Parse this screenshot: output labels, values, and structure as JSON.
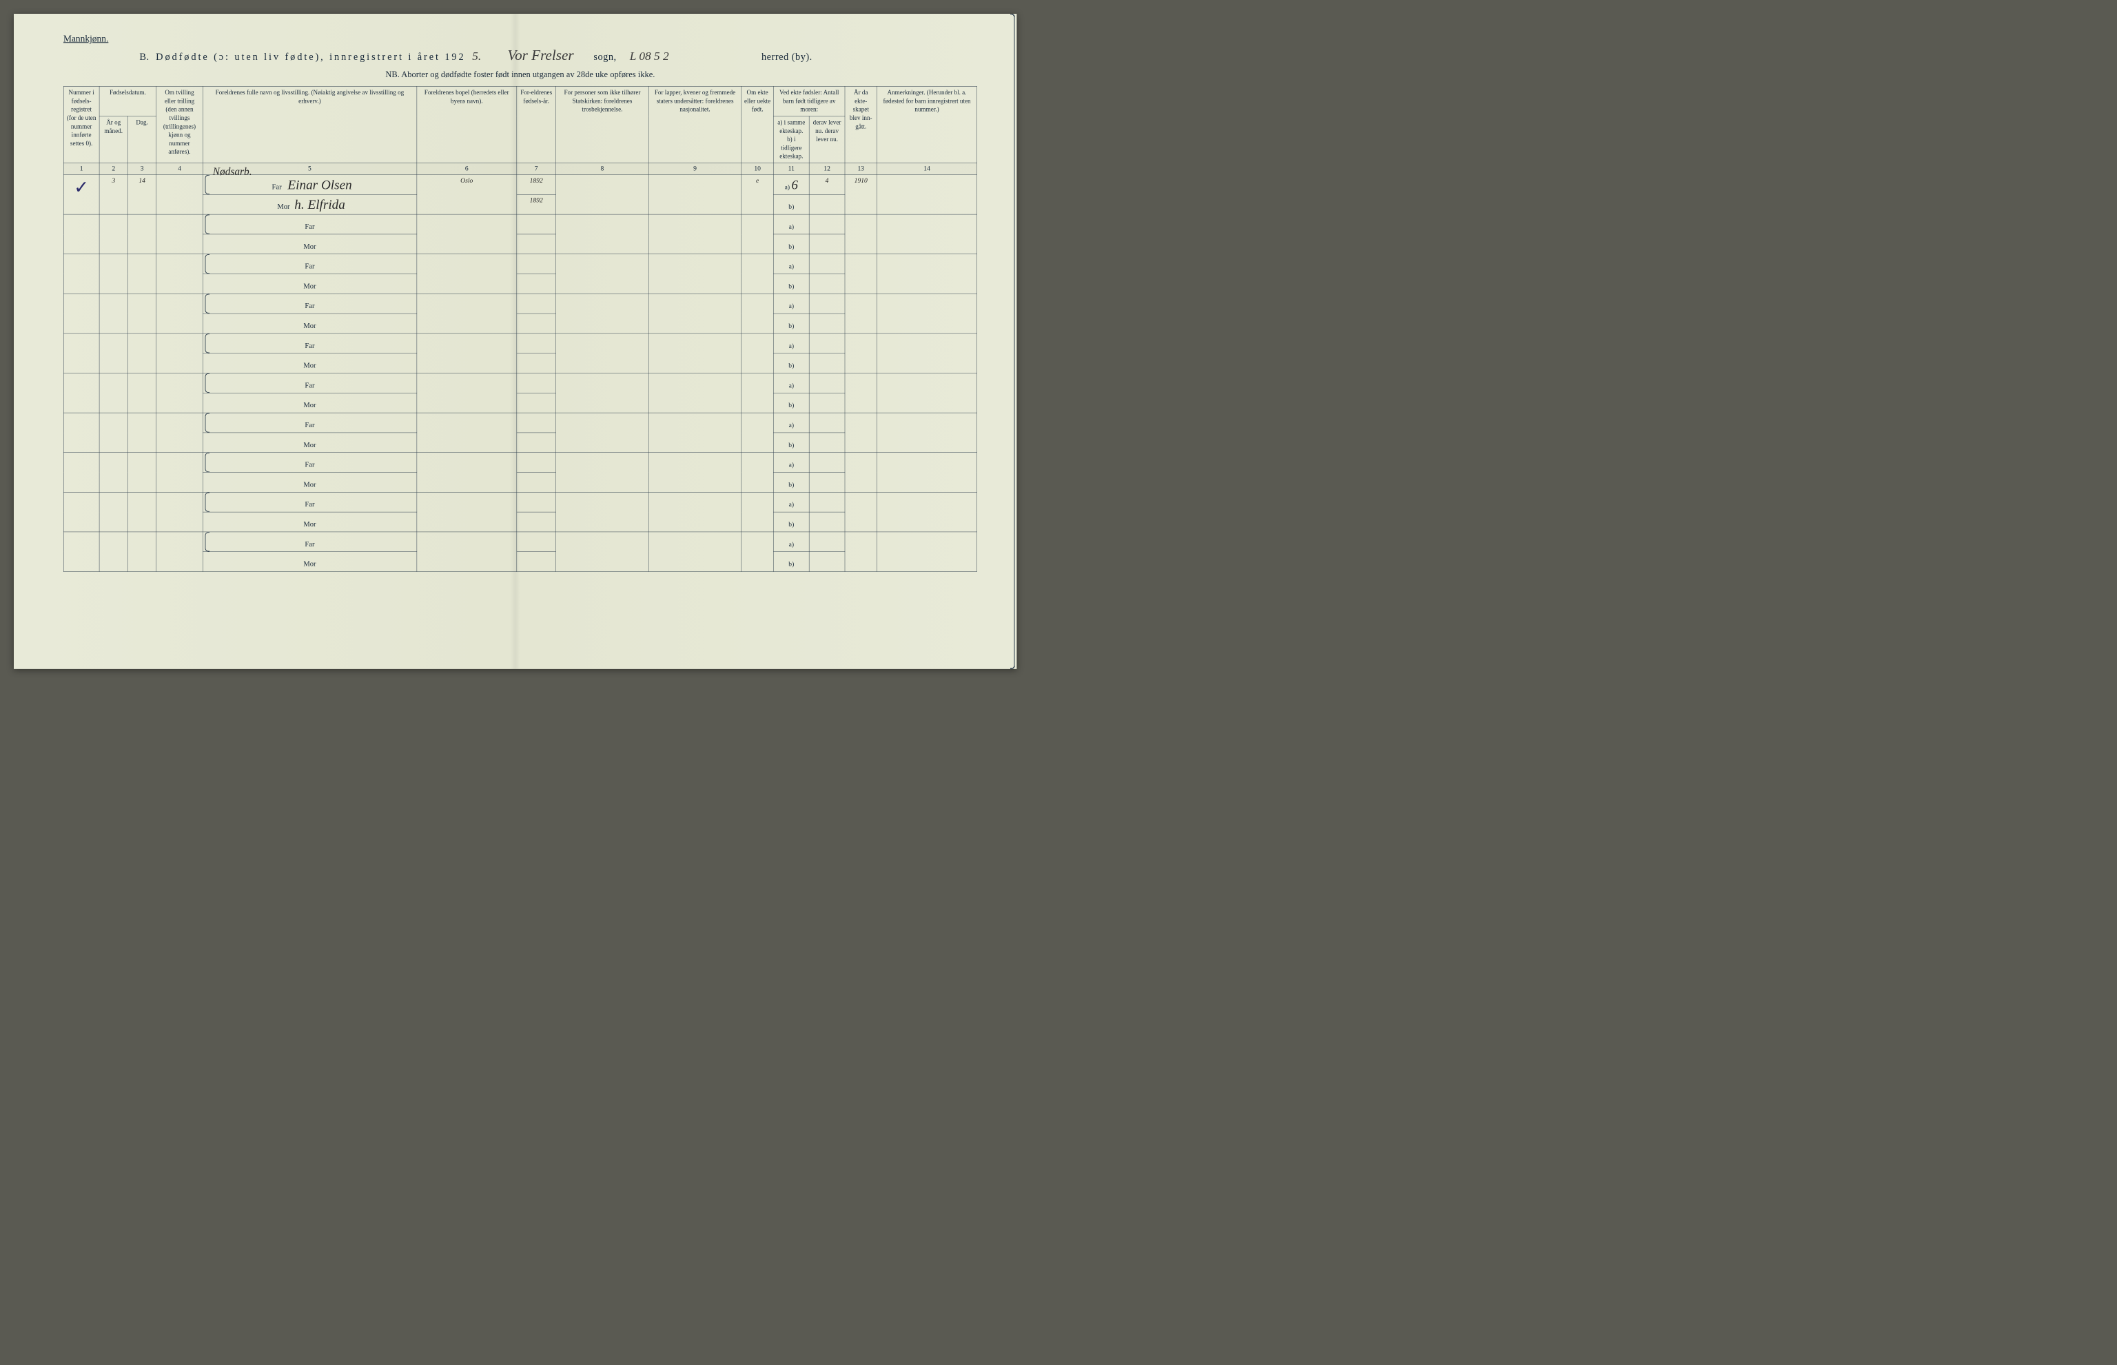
{
  "document": {
    "type": "table",
    "background_color": "#e6e8d6",
    "ink_color": "#1a2a3a",
    "handwriting_color": "#2a2a2a",
    "border_color": "#2a3a4a",
    "top_label": "Mannkjønn.",
    "title_prefix": "B.",
    "title_main": "Dødfødte (ɔ: uten liv fødte), innregistrert i året 192",
    "title_year_hw": "5.",
    "parish_hw": "Vor Frelser",
    "label_sogn": "sogn,",
    "code_hw": "L 08 5 2",
    "label_herred": "herred (by).",
    "nb_text": "NB. Aborter og dødfødte foster født innen utgangen av 28de uke opføres ikke.",
    "headers": {
      "c1": "Nummer i fødsels-registret (for de uten nummer innførte settes 0).",
      "c23_group": "Fødselsdatum.",
      "c2": "År og måned.",
      "c3": "Dag.",
      "c4": "Om tvilling eller trilling (den annen tvillings (trillingenes) kjønn og nummer anføres).",
      "c5": "Foreldrenes fulle navn og livsstilling. (Nøiaktig angivelse av livsstilling og erhverv.)",
      "c6": "Foreldrenes bopel (herredets eller byens navn).",
      "c7": "For-eldrenes fødsels-år.",
      "c8": "For personer som ikke tilhører Statskirken: foreldrenes trosbekjennelse.",
      "c9": "For lapper, kvener og fremmede staters undersåtter: foreldrenes nasjonalitet.",
      "c10": "Om ekte eller uekte født.",
      "c1112_group": "Ved ekte fødsler: Antall barn født tidligere av moren:",
      "c11": "a) i samme ekteskap. b) i tidligere ekteskap.",
      "c12": "derav lever nu. derav lever nu.",
      "c13": "År da ekte-skapet blev inn-gått.",
      "c14": "Anmerkninger. (Herunder bl. a. fødested for barn innregistrert uten nummer.)"
    },
    "colnums": [
      "1",
      "2",
      "3",
      "4",
      "5",
      "6",
      "7",
      "8",
      "9",
      "10",
      "11",
      "12",
      "13",
      "14"
    ],
    "far_label": "Far",
    "mor_label": "Mor",
    "ab_a": "a)",
    "ab_b": "b)",
    "rows": [
      {
        "num_mark": "✓",
        "month": "3",
        "day": "14",
        "twin": "",
        "occupation_top": "Nødsarb.",
        "far_name": "Einar Olsen",
        "mor_name": "h. Elfrida",
        "bopel": "Oslo",
        "far_year": "1892",
        "mor_year": "1892",
        "c8": "",
        "c9": "",
        "ekte": "e",
        "a_val": "6",
        "a_lever": "4",
        "b_val": "",
        "b_lever": "",
        "year_married": "1910",
        "remarks": ""
      },
      {},
      {},
      {},
      {},
      {},
      {},
      {},
      {},
      {}
    ]
  }
}
